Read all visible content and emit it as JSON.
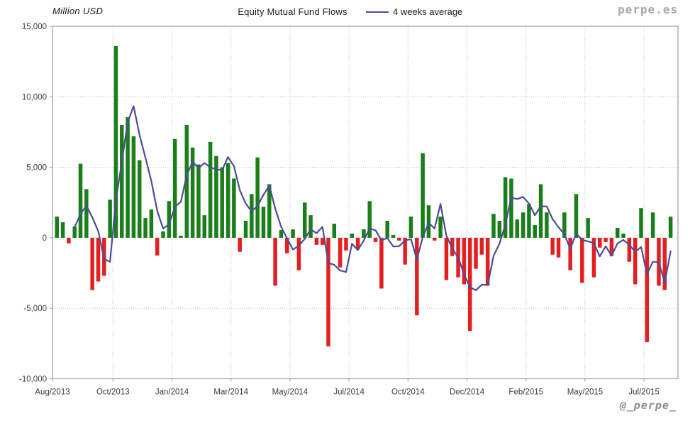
{
  "chart_data": {
    "type": "bar",
    "title": "Equity Mutual Fund Flows",
    "unit_label": "Million USD",
    "legend": {
      "label": "4 weeks average"
    },
    "watermark": "perpe.es",
    "handle": "@_perpe_",
    "moving_average_window": 4,
    "ylim": [
      -10000,
      15000
    ],
    "grid": true,
    "y_ticks": [
      {
        "label": "15,000",
        "value": 15000
      },
      {
        "label": "10,000",
        "value": 10000
      },
      {
        "label": "5,000",
        "value": 5000
      },
      {
        "label": "0",
        "value": 0
      },
      {
        "label": "-5,000",
        "value": -5000
      },
      {
        "label": "-10,000",
        "value": -10000
      }
    ],
    "x_ticks": [
      {
        "label": "Aug/2013",
        "week_index": 0
      },
      {
        "label": "Oct/2013",
        "week_index": 10
      },
      {
        "label": "Jan/2014",
        "week_index": 20
      },
      {
        "label": "Mar/2014",
        "week_index": 30
      },
      {
        "label": "May/2014",
        "week_index": 40
      },
      {
        "label": "Jul/2014",
        "week_index": 50
      },
      {
        "label": "Oct/2014",
        "week_index": 60
      },
      {
        "label": "Dec/2014",
        "week_index": 70
      },
      {
        "label": "Feb/2015",
        "week_index": 80
      },
      {
        "label": "May/2015",
        "week_index": 90
      },
      {
        "label": "Jul/2015",
        "week_index": 100
      }
    ],
    "weekly_flows": [
      1500,
      1100,
      -400,
      800,
      5250,
      3450,
      -3700,
      -3100,
      -2700,
      2700,
      13600,
      8000,
      8550,
      7200,
      5500,
      1400,
      2000,
      -1250,
      450,
      2600,
      7000,
      150,
      8000,
      6400,
      5200,
      1600,
      6800,
      5800,
      5000,
      5300,
      4200,
      -1000,
      1200,
      3100,
      5700,
      2200,
      3800,
      -3400,
      550,
      -1100,
      600,
      -2300,
      2500,
      1600,
      -500,
      -500,
      -7700,
      1000,
      -2100,
      -900,
      300,
      -800,
      600,
      2600,
      -300,
      -3600,
      1200,
      200,
      -200,
      -1900,
      1500,
      -5500,
      6000,
      2300,
      -200,
      1500,
      -3000,
      -1300,
      -2800,
      -3300,
      -6600,
      -2200,
      -1200,
      -3400,
      1700,
      1200,
      4300,
      4200,
      1300,
      1800,
      2400,
      900,
      3800,
      1800,
      -1200,
      -1400,
      1800,
      -2300,
      3100,
      -3200,
      1400,
      -2800,
      -700,
      -300,
      -1300,
      700,
      300,
      -1700,
      -3300,
      2100,
      -7400,
      1800,
      -3400,
      -3700,
      1500
    ],
    "colors": {
      "positive": "#1a7e1a",
      "negative": "#e32020",
      "ma_line": "#4c4c99",
      "grid": "#bdbdbd",
      "border": "#9e9e9e",
      "axis_text": "#3c3c3c"
    }
  }
}
